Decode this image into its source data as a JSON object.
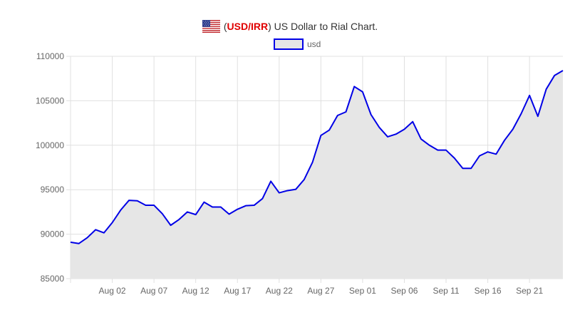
{
  "header": {
    "flag_icon": "us-flag-icon",
    "open_paren": "(",
    "pair": "USD/IRR",
    "close_text": ") US Dollar to Rial Chart."
  },
  "colors": {
    "line": "#0000e6",
    "fill": "#e6e6e6",
    "pair_text": "#e00000",
    "grid": "#e0e0e0"
  },
  "chart_data": {
    "type": "area",
    "title": "(USD/IRR) US Dollar to Rial Chart.",
    "xlabel": "",
    "ylabel": "",
    "ylim": [
      85000,
      110000
    ],
    "yticks": [
      85000,
      90000,
      95000,
      100000,
      105000,
      110000
    ],
    "ytick_labels": [
      "85000",
      "90000",
      "95000",
      "100000",
      "105000",
      "110000"
    ],
    "xtick_labels": [
      "Aug 02",
      "Aug 07",
      "Aug 12",
      "Aug 17",
      "Aug 22",
      "Aug 27",
      "Sep 01",
      "Sep 06",
      "Sep 11",
      "Sep 16",
      "Sep 21"
    ],
    "xtick_indices": [
      5,
      10,
      15,
      20,
      25,
      30,
      35,
      40,
      45,
      50,
      55
    ],
    "grid": true,
    "legend": {
      "position": "top",
      "entries": [
        "usd"
      ]
    },
    "x": [
      "Jul 28",
      "Jul 29",
      "Jul 30",
      "Jul 31",
      "Aug 01",
      "Aug 02",
      "Aug 03",
      "Aug 04",
      "Aug 05",
      "Aug 06",
      "Aug 07",
      "Aug 08",
      "Aug 09",
      "Aug 10",
      "Aug 11",
      "Aug 12",
      "Aug 13",
      "Aug 14",
      "Aug 15",
      "Aug 16",
      "Aug 17",
      "Aug 18",
      "Aug 19",
      "Aug 20",
      "Aug 21",
      "Aug 22",
      "Aug 23",
      "Aug 24",
      "Aug 25",
      "Aug 26",
      "Aug 27",
      "Aug 28",
      "Aug 29",
      "Aug 30",
      "Aug 31",
      "Sep 01",
      "Sep 02",
      "Sep 03",
      "Sep 04",
      "Sep 05",
      "Sep 06",
      "Sep 07",
      "Sep 08",
      "Sep 09",
      "Sep 10",
      "Sep 11",
      "Sep 12",
      "Sep 13",
      "Sep 14",
      "Sep 15",
      "Sep 16",
      "Sep 17",
      "Sep 18",
      "Sep 19",
      "Sep 20",
      "Sep 21",
      "Sep 22",
      "Sep 23",
      "Sep 24",
      "Sep 25"
    ],
    "series": [
      {
        "name": "usd",
        "values": [
          89100,
          88950,
          89600,
          90500,
          90150,
          91300,
          92700,
          93800,
          93750,
          93250,
          93250,
          92300,
          91000,
          91650,
          92500,
          92200,
          93600,
          93050,
          93050,
          92250,
          92800,
          93200,
          93250,
          94000,
          95950,
          94650,
          94900,
          95050,
          96150,
          98100,
          101100,
          101700,
          103350,
          103750,
          106600,
          106000,
          103450,
          102000,
          100950,
          101250,
          101800,
          102650,
          100700,
          100000,
          99450,
          99450,
          98550,
          97400,
          97400,
          98800,
          99250,
          99000,
          100550,
          101800,
          103550,
          105600,
          103250,
          106300,
          107850,
          108400
        ]
      }
    ]
  }
}
